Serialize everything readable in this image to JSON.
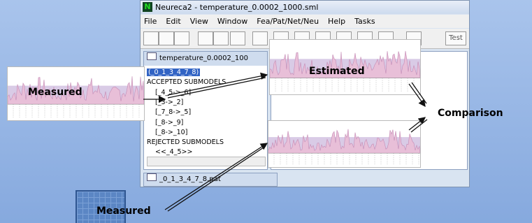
{
  "window": {
    "title": "Neureca2 - temperature_0.0002_1000.sml",
    "menu": [
      "File",
      "Edit",
      "View",
      "Window",
      "Fea/Pat/Net/Neu",
      "Help",
      "Tasks"
    ],
    "toolbar_button": "Test"
  },
  "child_window": {
    "title": "temperature_0.0002_100",
    "tree": [
      "(_0_1_3_4_7_8)",
      "ACCEPTED SUBMODELS",
      "[_4_5->_6]",
      "[_3->_2]",
      "[_7_8->_5]",
      "[_8->_9]",
      "[_8->_10]",
      "REJECTED SUBMODELS",
      "<<_4_5>>"
    ]
  },
  "pattern_window": {
    "title": "_0_1_3_4_7_8.pat"
  },
  "labels": {
    "measured_top": "Measured",
    "estimated": "Estimated",
    "comparison": "Comparison",
    "measured_bottom": "Measured"
  }
}
